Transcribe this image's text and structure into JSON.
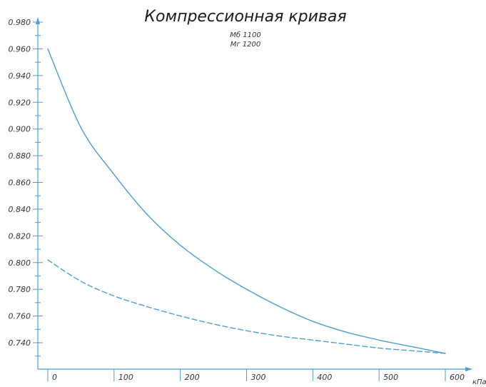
{
  "chart_data": {
    "type": "line",
    "title": "Компрессионная кривая",
    "subtitle": [
      "Мб 1100",
      "Мг 1200"
    ],
    "xlabel": "кПа",
    "ylabel": "",
    "xlim": [
      0,
      600
    ],
    "ylim": [
      0.73,
      0.98
    ],
    "x_ticks": [
      "0",
      "100",
      "200",
      "300",
      "400",
      "500",
      "600"
    ],
    "y_ticks": [
      "0.980",
      "0.960",
      "0.940",
      "0.920",
      "0.900",
      "0.880",
      "0.860",
      "0.840",
      "0.820",
      "0.800",
      "0.780",
      "0.760",
      "0.740"
    ],
    "grid": false,
    "series": [
      {
        "style": "solid",
        "color": "#4a9fce",
        "x": [
          0,
          50,
          100,
          150,
          200,
          250,
          300,
          350,
          400,
          450,
          500,
          550,
          600
        ],
        "y": [
          0.96,
          0.901,
          0.866,
          0.836,
          0.813,
          0.795,
          0.78,
          0.767,
          0.756,
          0.748,
          0.742,
          0.737,
          0.732
        ]
      },
      {
        "style": "dashed",
        "color": "#4a9fce",
        "x": [
          0,
          50,
          100,
          150,
          200,
          250,
          300,
          350,
          400,
          450,
          500,
          550,
          600
        ],
        "y": [
          0.802,
          0.786,
          0.775,
          0.767,
          0.76,
          0.754,
          0.749,
          0.745,
          0.742,
          0.739,
          0.736,
          0.734,
          0.732
        ]
      }
    ]
  }
}
